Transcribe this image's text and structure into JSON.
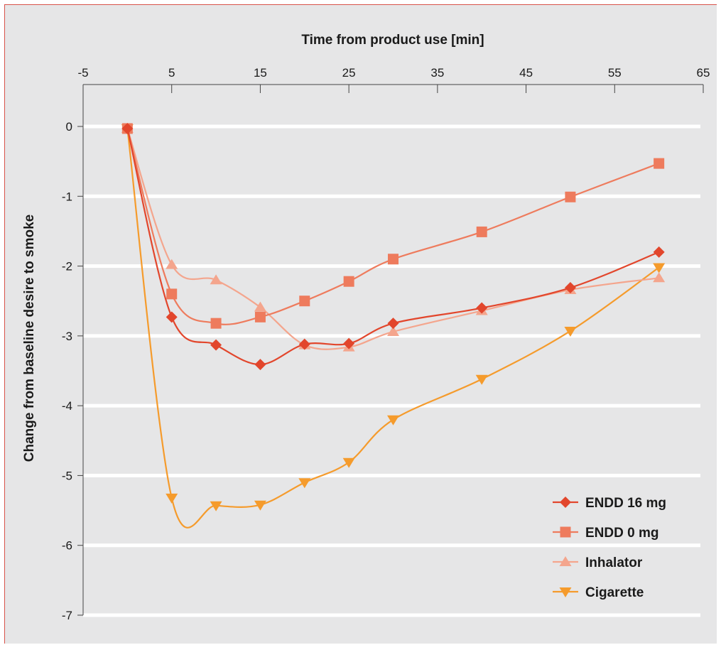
{
  "chart_data": {
    "type": "line",
    "xlabel": "Time from product use [min]",
    "ylabel": "Change from baseline desire to smoke",
    "xlim": [
      -5,
      65
    ],
    "ylim": [
      -7,
      0
    ],
    "x_ticks": [
      "-5",
      "5",
      "15",
      "25",
      "35",
      "45",
      "55",
      "65"
    ],
    "y_ticks": [
      "0",
      "-1",
      "-2",
      "-3",
      "-4",
      "-5",
      "-6",
      "-7"
    ],
    "x_axis_position": "top",
    "grid": "horizontal",
    "legend_position": "bottom-right",
    "series": [
      {
        "name": "ENDD 16 mg",
        "color": "#e2462c",
        "marker": "diamond",
        "x": [
          0,
          5,
          10,
          15,
          20,
          25,
          30,
          40,
          50,
          60
        ],
        "y": [
          -0.03,
          -2.73,
          -3.13,
          -3.41,
          -3.12,
          -3.11,
          -2.82,
          -2.6,
          -2.31,
          -1.8
        ]
      },
      {
        "name": "ENDD 0 mg",
        "color": "#ee7b5d",
        "marker": "square",
        "x": [
          0,
          5,
          10,
          15,
          20,
          25,
          30,
          40,
          50,
          60
        ],
        "y": [
          -0.03,
          -2.4,
          -2.82,
          -2.73,
          -2.5,
          -2.22,
          -1.9,
          -1.51,
          -1.01,
          -0.53
        ]
      },
      {
        "name": "Inhalator",
        "color": "#f4a58d",
        "marker": "triangle-up",
        "x": [
          0,
          5,
          10,
          15,
          20,
          25,
          30,
          40,
          50,
          60
        ],
        "y": [
          -0.03,
          -1.98,
          -2.2,
          -2.59,
          -3.13,
          -3.16,
          -2.94,
          -2.64,
          -2.34,
          -2.17
        ]
      },
      {
        "name": "Cigarette",
        "color": "#f59b2c",
        "marker": "triangle-down",
        "x": [
          0,
          5,
          10,
          15,
          20,
          25,
          30,
          40,
          50,
          60
        ],
        "y": [
          -0.03,
          -5.32,
          -5.43,
          -5.42,
          -5.1,
          -4.81,
          -4.2,
          -3.62,
          -2.93,
          -2.02
        ]
      }
    ]
  }
}
